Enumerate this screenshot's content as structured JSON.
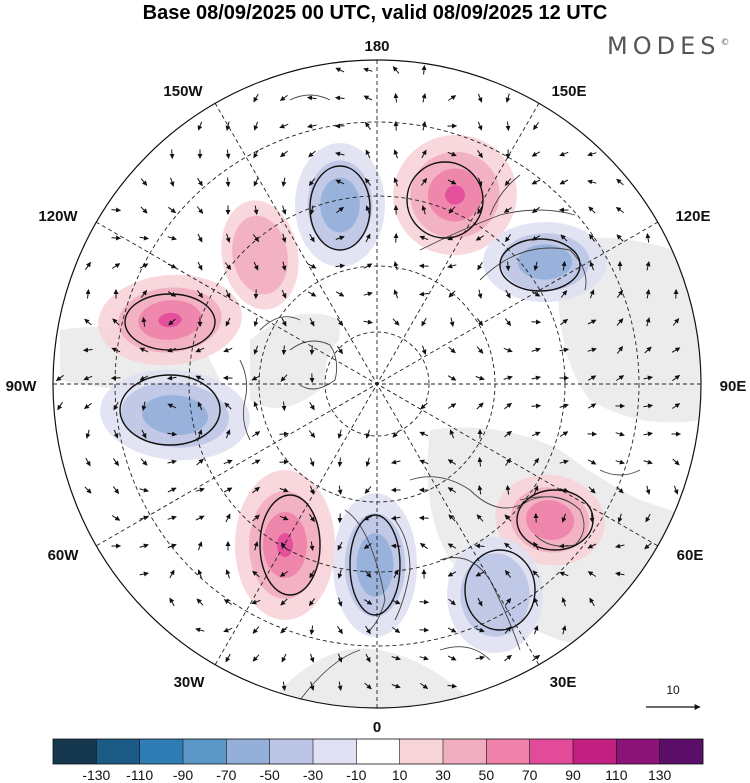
{
  "title": "Base 08/09/2025 00 UTC, valid 08/09/2025 12 UTC",
  "brand": "MODES",
  "brand_mark": "©",
  "longitude_labels": {
    "lon_180": "180",
    "lon_150e": "150E",
    "lon_120e": "120E",
    "lon_90e": "90E",
    "lon_60e": "60E",
    "lon_30e": "30E",
    "lon_0": "0",
    "lon_30w": "30W",
    "lon_60w": "60W",
    "lon_90w": "90W",
    "lon_120w": "120W",
    "lon_150w": "150W"
  },
  "vector_reference": "10",
  "colorbar": {
    "ticks": [
      "-130",
      "-110",
      "-90",
      "-70",
      "-50",
      "-30",
      "-10",
      "10",
      "30",
      "50",
      "70",
      "90",
      "110",
      "130"
    ],
    "colors": [
      "#16384f",
      "#1d5b87",
      "#2f7cb5",
      "#5b98c8",
      "#94afd9",
      "#bcc5e6",
      "#e0e1f2",
      "#ffffff",
      "#f7d4d8",
      "#f2aec1",
      "#ee82aa",
      "#e24a9a",
      "#c21f83",
      "#8c1478",
      "#5b0e67"
    ]
  },
  "anomaly_centers": [
    {
      "id": "c1",
      "sign": "neg",
      "level": 2
    },
    {
      "id": "c2",
      "sign": "pos",
      "level": 3
    },
    {
      "id": "c3",
      "sign": "neg",
      "level": 2
    },
    {
      "id": "c4",
      "sign": "pos",
      "level": 3
    },
    {
      "id": "c5",
      "sign": "neg",
      "level": 2
    },
    {
      "id": "c6",
      "sign": "pos",
      "level": 3
    },
    {
      "id": "c7",
      "sign": "neg",
      "level": 2
    },
    {
      "id": "c8",
      "sign": "pos",
      "level": 2
    },
    {
      "id": "c9",
      "sign": "neg",
      "level": 1
    },
    {
      "id": "c10",
      "sign": "pos",
      "level": 1
    }
  ]
}
